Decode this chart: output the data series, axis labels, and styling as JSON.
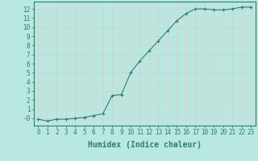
{
  "x": [
    0,
    1,
    2,
    3,
    4,
    5,
    6,
    7,
    8,
    9,
    10,
    11,
    12,
    13,
    14,
    15,
    16,
    17,
    18,
    19,
    20,
    21,
    22,
    23
  ],
  "y": [
    -0.1,
    -0.3,
    -0.1,
    -0.1,
    0.0,
    0.1,
    0.3,
    0.5,
    2.5,
    2.6,
    5.0,
    6.3,
    7.4,
    8.5,
    9.6,
    10.7,
    11.5,
    12.0,
    12.0,
    11.9,
    11.9,
    12.0,
    12.2,
    12.2
  ],
  "line_color": "#2e7d72",
  "marker": "+",
  "bg_color": "#b8e8e0",
  "grid_color": "#c8dedd",
  "xlabel": "Humidex (Indice chaleur)",
  "xlim": [
    -0.5,
    23.5
  ],
  "ylim": [
    -0.8,
    12.8
  ],
  "yticks": [
    0,
    1,
    2,
    3,
    4,
    5,
    6,
    7,
    8,
    9,
    10,
    11,
    12
  ],
  "xticks": [
    0,
    1,
    2,
    3,
    4,
    5,
    6,
    7,
    8,
    9,
    10,
    11,
    12,
    13,
    14,
    15,
    16,
    17,
    18,
    19,
    20,
    21,
    22,
    23
  ],
  "tick_color": "#2e7d72",
  "label_fontsize": 5.5,
  "axis_label_fontsize": 7
}
